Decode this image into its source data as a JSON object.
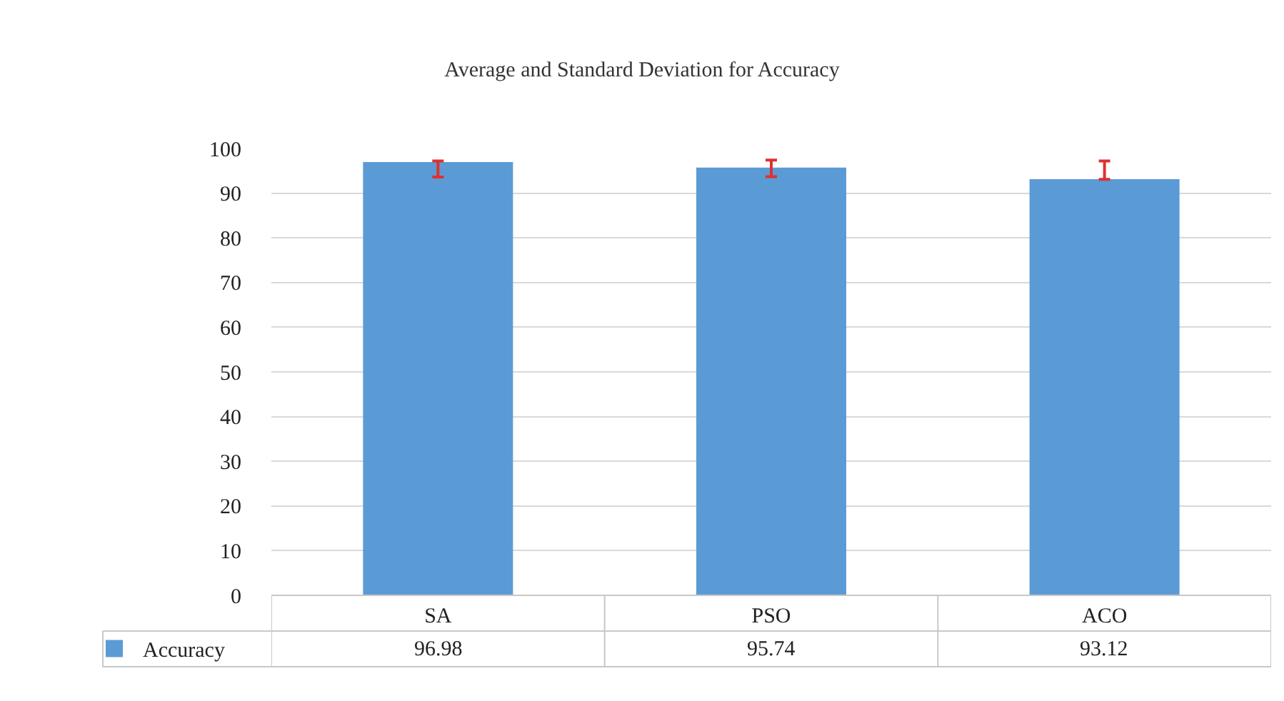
{
  "chart_data": {
    "type": "bar",
    "title": "Average and Standard Deviation for Accuracy",
    "categories": [
      "SA",
      "PSO",
      "ACO"
    ],
    "series": [
      {
        "name": "Accuracy",
        "color": "#5b9bd5",
        "values": [
          96.98,
          95.74,
          93.12
        ],
        "errors": [
          [
            93.6,
            97.2
          ],
          [
            93.7,
            97.4
          ],
          [
            93.1,
            97.2
          ]
        ]
      }
    ],
    "ylim": [
      0,
      100
    ],
    "yticks": [
      0,
      10,
      20,
      30,
      40,
      50,
      60,
      70,
      80,
      90,
      100
    ],
    "grid": "y",
    "legend": "bottom left",
    "data_labels": true
  }
}
